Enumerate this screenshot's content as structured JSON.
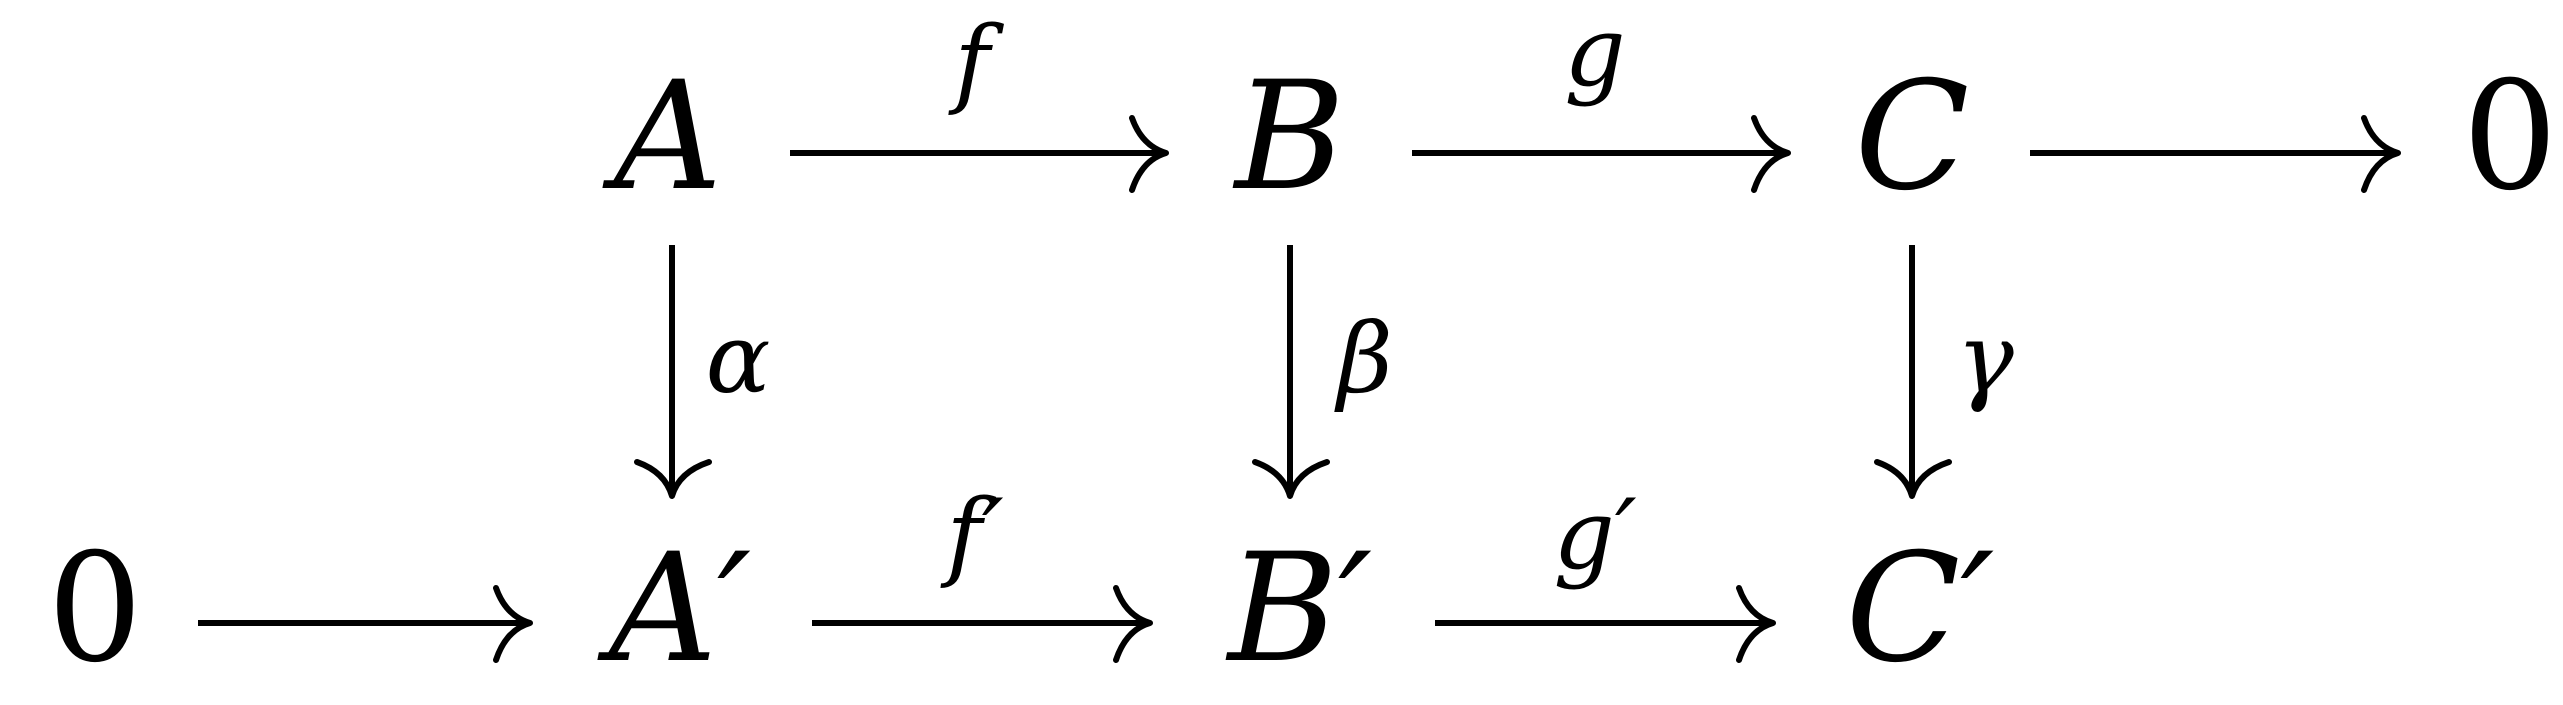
{
  "diagram": {
    "nodes": {
      "A": "A",
      "B": "B",
      "C": "C",
      "zero_top": "0",
      "zero_bottom": "0",
      "A_prime": "A′",
      "B_prime": "B′",
      "C_prime": "C′"
    },
    "arrow_labels": {
      "f": "f",
      "g": "g",
      "alpha": "α",
      "beta": "β",
      "gamma": "γ",
      "f_prime": "f′",
      "g_prime": "g′"
    },
    "edges": [
      {
        "from": "A",
        "to": "B",
        "label": "f"
      },
      {
        "from": "B",
        "to": "C",
        "label": "g"
      },
      {
        "from": "C",
        "to": "0",
        "label": ""
      },
      {
        "from": "A",
        "to": "A′",
        "label": "α"
      },
      {
        "from": "B",
        "to": "B′",
        "label": "β"
      },
      {
        "from": "C",
        "to": "C′",
        "label": "γ"
      },
      {
        "from": "0",
        "to": "A′",
        "label": ""
      },
      {
        "from": "A′",
        "to": "B′",
        "label": "f′"
      },
      {
        "from": "B′",
        "to": "C′",
        "label": "g′"
      }
    ]
  }
}
